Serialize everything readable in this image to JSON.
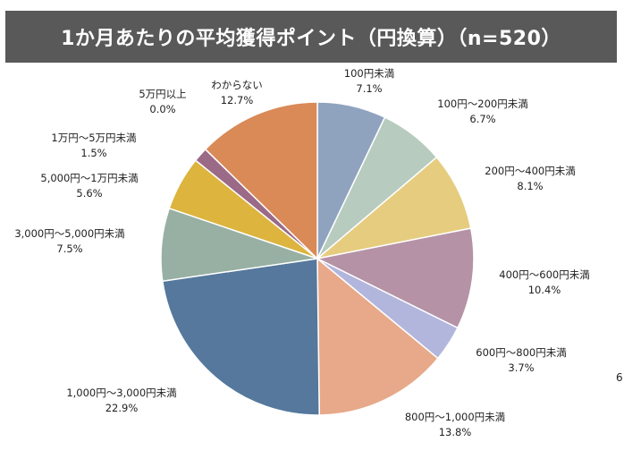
{
  "chart_data": {
    "type": "pie",
    "title": "1か月あたりの平均獲得ポイント（円換算）（n=520）",
    "slices": [
      {
        "category": "100円未満",
        "value": 7.1,
        "label": "7.1%",
        "color": "#8fa3bf"
      },
      {
        "category": "100円～200円未満",
        "value": 6.7,
        "label": "6.7%",
        "color": "#b7cbbf"
      },
      {
        "category": "200円～400円未満",
        "value": 8.1,
        "label": "8.1%",
        "color": "#e6cc7e"
      },
      {
        "category": "400円～600円未満",
        "value": 10.4,
        "label": "10.4%",
        "color": "#b592a6"
      },
      {
        "category": "600円～800円未満",
        "value": 3.7,
        "label": "3.7%",
        "color": "#b2b6dd"
      },
      {
        "category": "800円～1,000円未満",
        "value": 13.8,
        "label": "13.8%",
        "color": "#e7a989"
      },
      {
        "category": "1,000円～3,000円未満",
        "value": 22.9,
        "label": "22.9%",
        "color": "#55789c"
      },
      {
        "category": "3,000円～5,000円未満",
        "value": 7.5,
        "label": "7.5%",
        "color": "#97b0a3"
      },
      {
        "category": "5,000円～1万円未満",
        "value": 5.6,
        "label": "5.6%",
        "color": "#dcb43e"
      },
      {
        "category": "1万円～5万円未満",
        "value": 1.5,
        "label": "1.5%",
        "color": "#9a6a87"
      },
      {
        "category": "5万円以上",
        "value": 0.0,
        "label": "0.0%",
        "color": "#7d4f6a"
      },
      {
        "category": "わからない",
        "value": 12.7,
        "label": "12.7%",
        "color": "#d98a57"
      }
    ]
  },
  "page_number": "6"
}
